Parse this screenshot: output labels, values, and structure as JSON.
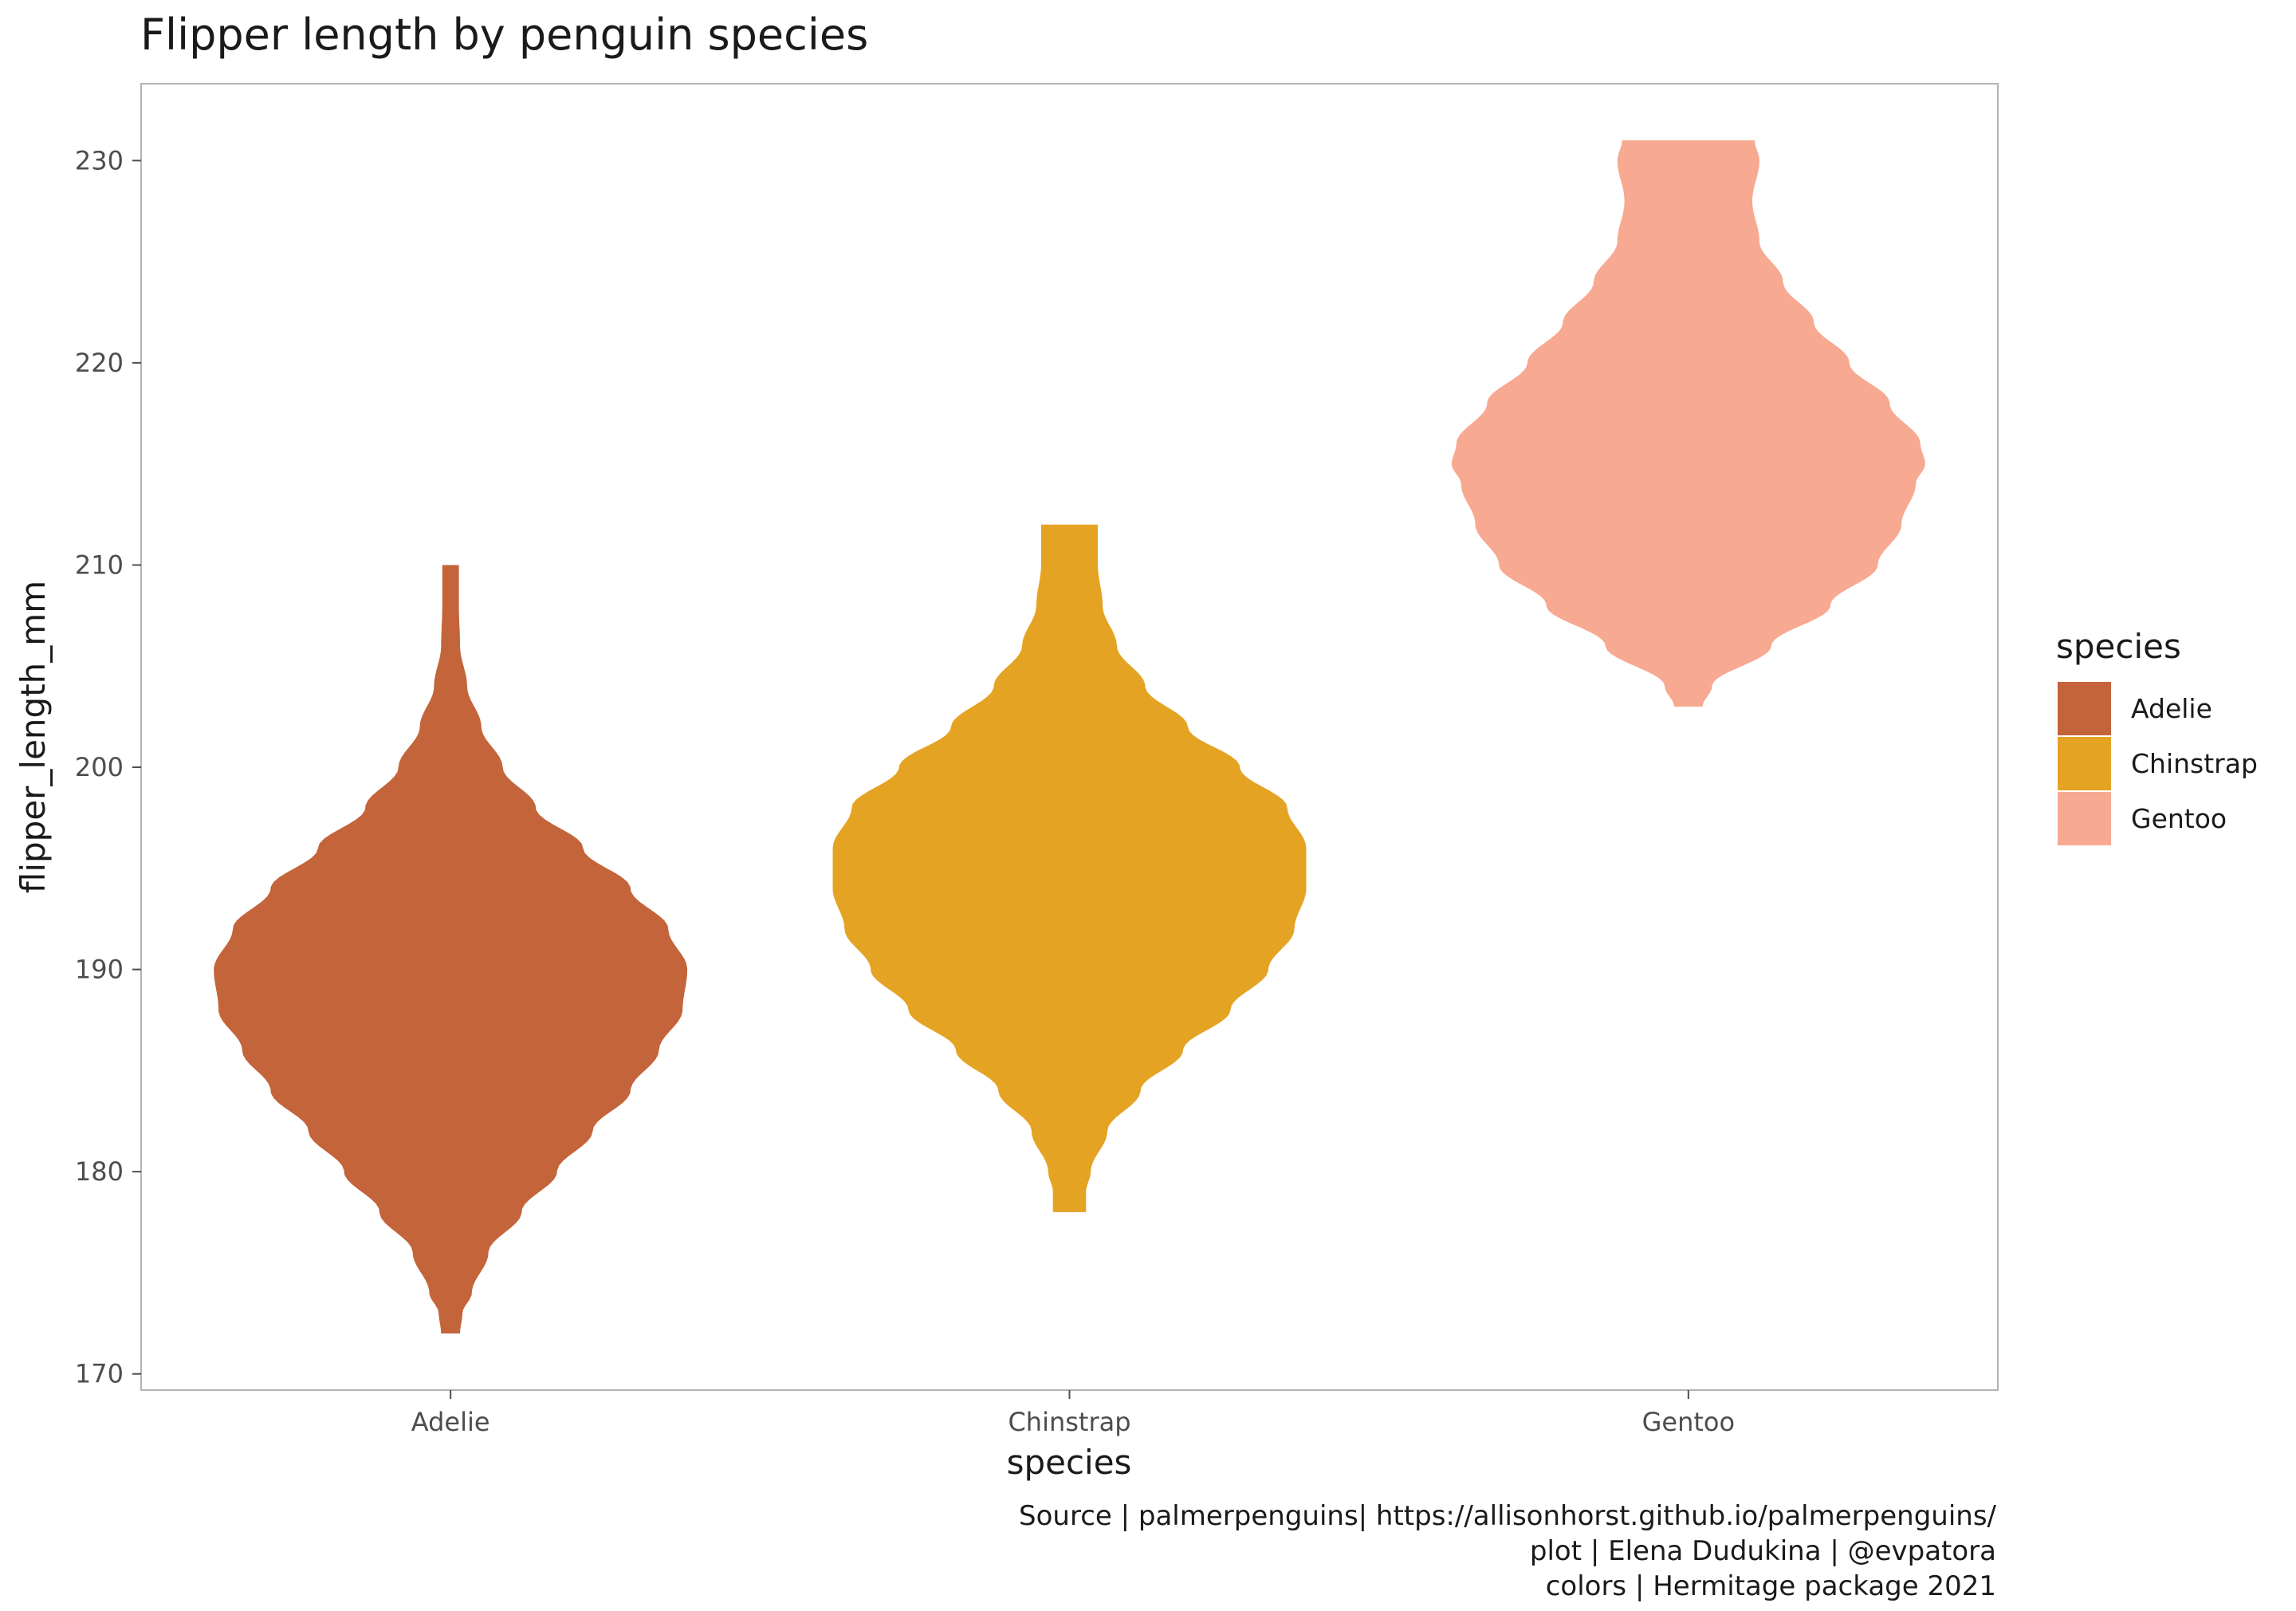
{
  "chart_data": {
    "type": "violin",
    "title": "Flipper length by penguin species",
    "xlabel": "species",
    "ylabel": "flipper_length_mm",
    "categories": [
      "Adelie",
      "Chinstrap",
      "Gentoo"
    ],
    "ylim": [
      169.2,
      233.8
    ],
    "yticks": [
      170,
      180,
      190,
      200,
      210,
      220,
      230
    ],
    "grid": false,
    "legend": {
      "title": "species",
      "placement": "right",
      "items": [
        {
          "label": "Adelie",
          "color": "#C4643A"
        },
        {
          "label": "Chinstrap",
          "color": "#E5A324"
        },
        {
          "label": "Gentoo",
          "color": "#F7A991"
        }
      ]
    },
    "series": [
      {
        "category": "Adelie",
        "color": "#C4643A",
        "range": [
          172,
          210
        ],
        "density_profile": [
          [
            172,
            0.04
          ],
          [
            173,
            0.05
          ],
          [
            174,
            0.09
          ],
          [
            176,
            0.16
          ],
          [
            178,
            0.3
          ],
          [
            180,
            0.45
          ],
          [
            182,
            0.6
          ],
          [
            184,
            0.76
          ],
          [
            186,
            0.88
          ],
          [
            188,
            0.98
          ],
          [
            190,
            1.0
          ],
          [
            192,
            0.92
          ],
          [
            194,
            0.76
          ],
          [
            196,
            0.56
          ],
          [
            198,
            0.36
          ],
          [
            200,
            0.22
          ],
          [
            202,
            0.13
          ],
          [
            204,
            0.07
          ],
          [
            206,
            0.04
          ],
          [
            208,
            0.035
          ],
          [
            210,
            0.035
          ]
        ]
      },
      {
        "category": "Chinstrap",
        "color": "#E5A324",
        "range": [
          178,
          212
        ],
        "density_profile": [
          [
            178,
            0.07
          ],
          [
            179,
            0.07
          ],
          [
            180,
            0.09
          ],
          [
            182,
            0.16
          ],
          [
            184,
            0.3
          ],
          [
            186,
            0.48
          ],
          [
            188,
            0.68
          ],
          [
            190,
            0.84
          ],
          [
            192,
            0.95
          ],
          [
            194,
            1.0
          ],
          [
            196,
            1.0
          ],
          [
            198,
            0.92
          ],
          [
            200,
            0.72
          ],
          [
            202,
            0.5
          ],
          [
            204,
            0.32
          ],
          [
            206,
            0.2
          ],
          [
            208,
            0.14
          ],
          [
            210,
            0.12
          ],
          [
            212,
            0.12
          ]
        ]
      },
      {
        "category": "Gentoo",
        "color": "#F7A991",
        "range": [
          203,
          231
        ],
        "density_profile": [
          [
            203,
            0.06
          ],
          [
            204,
            0.1
          ],
          [
            206,
            0.35
          ],
          [
            208,
            0.6
          ],
          [
            210,
            0.8
          ],
          [
            212,
            0.9
          ],
          [
            214,
            0.96
          ],
          [
            215,
            1.0
          ],
          [
            216,
            0.98
          ],
          [
            218,
            0.85
          ],
          [
            220,
            0.68
          ],
          [
            222,
            0.53
          ],
          [
            224,
            0.4
          ],
          [
            226,
            0.3
          ],
          [
            228,
            0.27
          ],
          [
            230,
            0.3
          ],
          [
            231,
            0.28
          ]
        ]
      }
    ],
    "caption": [
      "Source | palmerpenguins| https://allisonhorst.github.io/palmerpenguins/",
      "plot | Elena Dudukina | @evpatora",
      "colors | Hermitage package 2021"
    ]
  }
}
